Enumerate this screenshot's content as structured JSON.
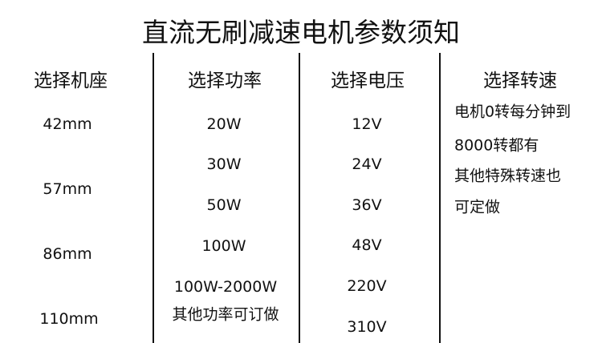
{
  "title": "直流无刷减速电机参数须知",
  "columns": [
    {
      "header": "选择机座",
      "values": [
        "42mm",
        "57mm",
        "86mm",
        "110mm"
      ]
    },
    {
      "header": "选择功率",
      "values": [
        "20W",
        "30W",
        "50W",
        "100W",
        "100W-2000W",
        "其他功率可订做"
      ]
    },
    {
      "header": "选择电压",
      "values": [
        "12V",
        "24V",
        "36V",
        "48V",
        "220V",
        "310V"
      ]
    },
    {
      "header": "选择转速",
      "lines": [
        "电机0转每分钟到",
        "8000转都有",
        "其他特殊转速也",
        "可定做"
      ]
    }
  ]
}
